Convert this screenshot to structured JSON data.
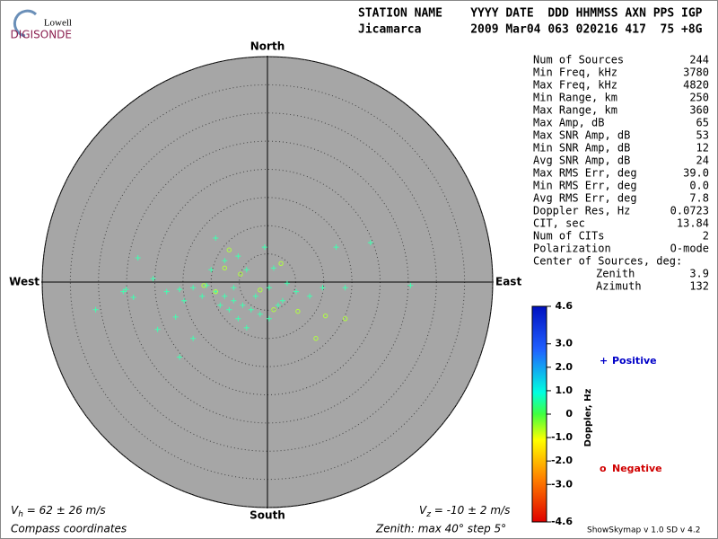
{
  "header": {
    "logo_top": "Lowell",
    "logo_bottom": "DIGISONDE",
    "columns": "STATION NAME    YYYY DATE  DDD HHMMSS AXN PPS IGP",
    "values": "Jicamarca       2009 Mar04 063 020216 417  75 +8G"
  },
  "stats": [
    [
      "Num of Sources",
      "244"
    ],
    [
      "Min Freq, kHz",
      "3780"
    ],
    [
      "Max Freq, kHz",
      "4820"
    ],
    [
      "Min Range, km",
      "250"
    ],
    [
      "Max Range, km",
      "360"
    ],
    [
      "Max Amp, dB",
      "65"
    ],
    [
      "Max SNR Amp, dB",
      "53"
    ],
    [
      "Min SNR Amp, dB",
      "12"
    ],
    [
      "Avg SNR Amp, dB",
      "24"
    ],
    [
      "Max RMS Err, deg",
      "39.0"
    ],
    [
      "Min RMS Err, deg",
      "0.0"
    ],
    [
      "Avg RMS Err, deg",
      "7.8"
    ],
    [
      "Doppler Res, Hz",
      "0.0723"
    ],
    [
      "CIT, sec",
      "13.84"
    ],
    [
      "Num of CITs",
      "2"
    ],
    [
      "Polarization",
      "O-mode"
    ]
  ],
  "center": {
    "title": "Center of Sources, deg:",
    "zenith_label": "Zenith",
    "zenith": "3.9",
    "azimuth_label": "Azimuth",
    "azimuth": "132"
  },
  "footer": {
    "vh_symbol": "V",
    "vh_sub": "h",
    "vh_text": " = 62 ± 26 m/s",
    "vz_symbol": "V",
    "vz_sub": "z",
    "vz_text": " = -10 ± 2 m/s",
    "coords": "Compass coordinates",
    "zenith": "Zenith: max 40°  step 5°",
    "version": "ShowSkymap v 1.0  SD v 4.2"
  },
  "chart_data": {
    "type": "scatter",
    "directions": {
      "north": "North",
      "south": "South",
      "east": "East",
      "west": "West"
    },
    "xlim": [
      -40,
      40
    ],
    "ylim": [
      -40,
      40
    ],
    "rings": [
      5,
      10,
      15,
      20,
      25,
      30,
      35,
      40
    ],
    "series": [
      {
        "name": "Positive",
        "marker": "+",
        "color": "#40ffb0",
        "legend_color": "#0000c8",
        "x": [
          -23.0,
          -20.3,
          -25.1,
          -25.6,
          -23.8,
          -30.5,
          -17.9,
          -15.6,
          -13.2,
          -14.8,
          -16.3,
          -19.5,
          -13.2,
          -15.6,
          -10.8,
          -9.2,
          -7.6,
          -6.0,
          -4.4,
          -2.9,
          -1.3,
          0.3,
          -6.8,
          -5.2,
          -3.7,
          -8.4,
          -10.0,
          -7.6,
          -5.2,
          -9.2,
          -3.7,
          -0.5,
          1.1,
          3.5,
          5.1,
          7.5,
          9.8,
          12.2,
          13.8,
          1.9,
          -2.1,
          -6.0,
          0.3,
          2.7,
          -11.6,
          18.3,
          25.4
        ],
        "y": [
          4.3,
          0.6,
          -1.3,
          -1.7,
          -2.7,
          -4.9,
          -1.7,
          -1.3,
          -1.0,
          -3.3,
          -6.2,
          -8.4,
          -10.0,
          -13.3,
          -0.6,
          -1.7,
          -2.5,
          -3.3,
          -4.1,
          -4.9,
          -5.7,
          -6.5,
          -4.9,
          -6.5,
          -8.1,
          -4.1,
          2.2,
          3.8,
          4.6,
          7.8,
          2.2,
          6.2,
          2.5,
          -0.2,
          -1.7,
          -2.5,
          -1.0,
          6.2,
          -1.0,
          -4.1,
          -2.5,
          -1.0,
          -1.0,
          -3.3,
          -2.5,
          7.0,
          -0.6
        ]
      },
      {
        "name": "Negative",
        "marker": "o",
        "color": "#b0ff40",
        "legend_color": "#d00000",
        "x": [
          -6.8,
          2.4,
          5.4,
          8.6,
          10.3,
          13.8,
          -4.8,
          -1.3,
          -9.2,
          -7.6,
          1.1,
          -11.3
        ],
        "y": [
          5.7,
          3.3,
          -5.2,
          -10.0,
          -6.0,
          -6.5,
          1.4,
          -1.4,
          -1.7,
          2.5,
          -4.9,
          -0.6
        ]
      }
    ],
    "colorbar": {
      "label": "Doppler, Hz",
      "lim": [
        -4.6,
        4.6
      ],
      "ticks": [
        4.6,
        {
          "value": 3,
          "label": "3.0"
        },
        {
          "value": 2,
          "label": "2.0"
        },
        {
          "value": 1,
          "label": "1.0"
        },
        0,
        {
          "value": -1,
          "label": "-1.0"
        },
        {
          "value": -2,
          "label": "-2.0"
        },
        {
          "value": -3,
          "label": "-3.0"
        },
        -4.6
      ]
    }
  }
}
